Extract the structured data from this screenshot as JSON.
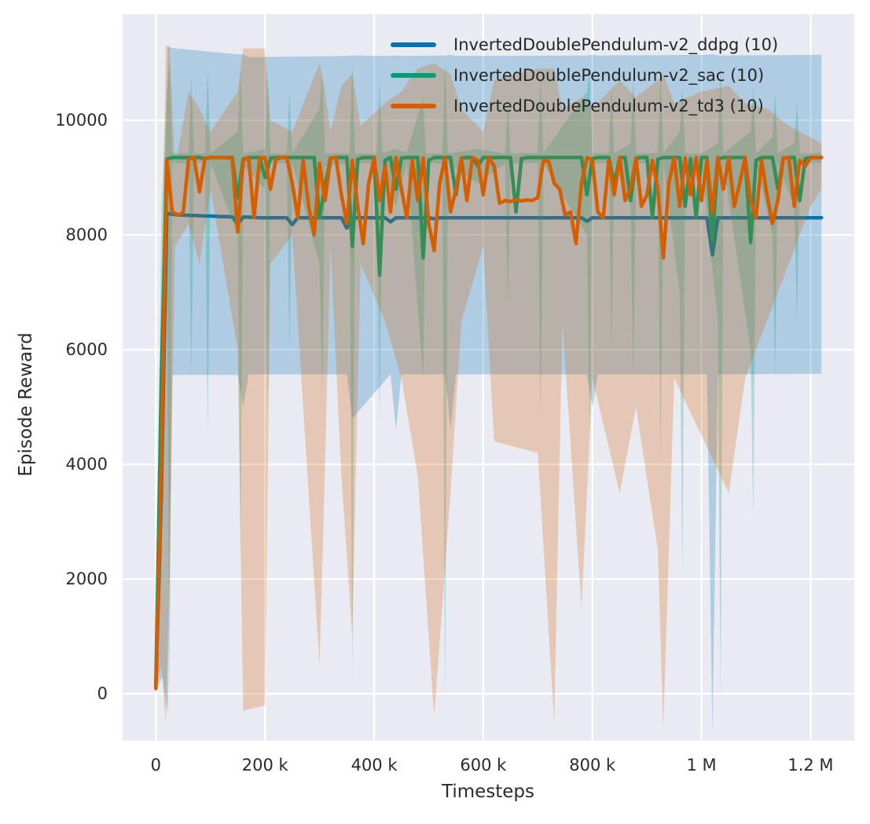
{
  "chart_data": {
    "type": "line",
    "title": "",
    "xlabel": "Timesteps",
    "ylabel": "Episode Reward",
    "grid": true,
    "legend_position": "upper center",
    "plot_background": "#eaeaf2",
    "grid_color": "#ffffff",
    "text_color": "#2b2b2b",
    "xlim": [
      -61000,
      1280000
    ],
    "ylim": [
      -820,
      11850
    ],
    "x_ticks": [
      {
        "value": 0,
        "label": "0"
      },
      {
        "value": 200000,
        "label": "200 k"
      },
      {
        "value": 400000,
        "label": "400 k"
      },
      {
        "value": 600000,
        "label": "600 k"
      },
      {
        "value": 800000,
        "label": "800 k"
      },
      {
        "value": 1000000,
        "label": "1 M"
      },
      {
        "value": 1200000,
        "label": "1.2 M"
      }
    ],
    "y_ticks": [
      {
        "value": 0,
        "label": "0"
      },
      {
        "value": 2000,
        "label": "2000"
      },
      {
        "value": 4000,
        "label": "4000"
      },
      {
        "value": 6000,
        "label": "6000"
      },
      {
        "value": 8000,
        "label": "8000"
      },
      {
        "value": 10000,
        "label": "10000"
      }
    ],
    "x_start": 0,
    "x_step": 10000,
    "series": [
      {
        "key": "ddpg",
        "name": "InvertedDoublePendulum-v2_ddpg (10)",
        "color": "#0173b2",
        "y": [
          130,
          3500,
          8380,
          8360,
          8350,
          8345,
          8340,
          8340,
          8335,
          8330,
          8330,
          8325,
          8320,
          8320,
          8315,
          8200,
          8310,
          8310,
          8305,
          8300,
          8300,
          8300,
          8300,
          8300,
          8300,
          8180,
          8300,
          8300,
          8300,
          8300,
          8300,
          8300,
          8300,
          8300,
          8300,
          8120,
          8300,
          8300,
          8300,
          8300,
          8300,
          8300,
          8300,
          8230,
          8300,
          8300,
          8300,
          8300,
          8300,
          8300,
          8300,
          8280,
          8300,
          8300,
          8300,
          8300,
          8300,
          8300,
          8300,
          8300,
          8300,
          8300,
          8300,
          8300,
          8300,
          8300,
          8300,
          8300,
          8300,
          8300,
          8300,
          8300,
          8300,
          8300,
          8300,
          8300,
          8300,
          8300,
          8300,
          8240,
          8300,
          8300,
          8300,
          8300,
          8300,
          8300,
          8300,
          8300,
          8300,
          8300,
          8300,
          8300,
          8300,
          8300,
          8300,
          8300,
          8300,
          8300,
          8300,
          8300,
          8300,
          8300,
          7650,
          8300,
          8300,
          8300,
          8300,
          8300,
          8300,
          8300,
          8300,
          8300,
          8300,
          8300,
          8300,
          8300,
          8300,
          8300,
          8300,
          8300,
          8300,
          8300,
          8300
        ]
      },
      {
        "key": "sac",
        "name": "InvertedDoublePendulum-v2_sac (10)",
        "color": "#029e73",
        "y": [
          150,
          5500,
          9320,
          9350,
          9350,
          9350,
          9350,
          9350,
          9350,
          9330,
          9350,
          9350,
          9350,
          9350,
          9350,
          8650,
          9320,
          9350,
          9350,
          9350,
          9000,
          9340,
          9350,
          9350,
          9350,
          9350,
          9350,
          9350,
          9350,
          9350,
          8300,
          8850,
          9340,
          9350,
          9350,
          9350,
          7800,
          9320,
          9350,
          9350,
          9350,
          7300,
          9300,
          9350,
          8800,
          9340,
          9350,
          9350,
          9350,
          7600,
          9300,
          9350,
          9350,
          9350,
          9350,
          8700,
          9340,
          9350,
          9350,
          9200,
          9350,
          9350,
          9350,
          9350,
          9350,
          9350,
          8400,
          9330,
          9350,
          9350,
          9350,
          9350,
          9350,
          9350,
          9350,
          9350,
          9350,
          9350,
          9350,
          8700,
          9330,
          9350,
          9350,
          9350,
          8900,
          9350,
          9350,
          8600,
          9340,
          9350,
          9350,
          8300,
          9320,
          9350,
          9350,
          9350,
          9350,
          8500,
          9330,
          8300,
          9350,
          9350,
          7900,
          9320,
          9350,
          9350,
          9350,
          9350,
          9350,
          7870,
          9300,
          9350,
          9350,
          9350,
          8800,
          9340,
          9350,
          9350,
          8600,
          9330,
          9350,
          9350,
          9350
        ]
      },
      {
        "key": "td3",
        "name": "InvertedDoublePendulum-v2_td3 (10)",
        "color": "#d55e00",
        "y": [
          90,
          4000,
          9300,
          8400,
          8350,
          8380,
          9320,
          9350,
          8750,
          9340,
          9350,
          9350,
          9350,
          9350,
          9330,
          8050,
          9300,
          9350,
          8300,
          9340,
          9350,
          8800,
          9320,
          9350,
          9350,
          8900,
          8300,
          9300,
          8500,
          8000,
          9250,
          8600,
          9330,
          9350,
          8700,
          8200,
          9300,
          8500,
          7850,
          8900,
          9340,
          8600,
          9200,
          8400,
          9350,
          8800,
          8300,
          9300,
          8600,
          9340,
          8200,
          7730,
          8900,
          9350,
          8400,
          8800,
          9340,
          8600,
          9350,
          9300,
          8700,
          9350,
          9200,
          8550,
          8600,
          8580,
          8620,
          8590,
          8610,
          8600,
          8650,
          9300,
          9280,
          8900,
          8800,
          8350,
          8400,
          7850,
          8900,
          9350,
          9300,
          8400,
          8300,
          9300,
          8700,
          9350,
          8600,
          8800,
          9340,
          8500,
          8700,
          9300,
          8800,
          7600,
          8900,
          9350,
          8500,
          9340,
          8700,
          9350,
          8600,
          9300,
          8400,
          9350,
          8800,
          9340,
          8500,
          8900,
          9350,
          8600,
          8300,
          9300,
          8700,
          8200,
          8600,
          9340,
          9350,
          8500,
          9300,
          9200,
          9350,
          9350,
          9350
        ]
      }
    ],
    "bands": [
      {
        "key": "ddpg",
        "color": "#0173b2",
        "opacity": 0.25,
        "x": [
          0,
          12000,
          22000,
          30000,
          150000,
          160000,
          170000,
          350000,
          360000,
          430000,
          440000,
          450000,
          530000,
          540000,
          550000,
          790000,
          800000,
          810000,
          1010000,
          1020000,
          1030000,
          1220000
        ],
        "low": [
          60,
          300,
          -350,
          5560,
          5560,
          5000,
          5570,
          5570,
          4800,
          5570,
          4600,
          5570,
          5570,
          4600,
          5570,
          5570,
          5000,
          5570,
          5570,
          -700,
          5570,
          5580
        ],
        "high": [
          220,
          7000,
          11280,
          11260,
          11150,
          11150,
          11100,
          11120,
          11130,
          11120,
          11130,
          11120,
          11130,
          11140,
          11120,
          11130,
          11140,
          11130,
          11140,
          11150,
          11130,
          11140
        ]
      },
      {
        "key": "sac",
        "color": "#029e73",
        "opacity": 0.25,
        "x": [
          0,
          10000,
          20000,
          25000,
          30000,
          60000,
          65000,
          70000,
          90000,
          95000,
          100000,
          150000,
          155000,
          160000,
          200000,
          205000,
          210000,
          240000,
          245000,
          250000,
          300000,
          305000,
          310000,
          355000,
          360000,
          365000,
          405000,
          410000,
          415000,
          440000,
          460000,
          490000,
          495000,
          525000,
          530000,
          535000,
          590000,
          640000,
          645000,
          650000,
          700000,
          705000,
          710000,
          790000,
          795000,
          800000,
          830000,
          835000,
          840000,
          870000,
          875000,
          880000,
          920000,
          925000,
          930000,
          960000,
          965000,
          970000,
          1000000,
          1030000,
          1035000,
          1040000,
          1090000,
          1095000,
          1100000,
          1130000,
          1135000,
          1140000,
          1170000,
          1175000,
          1180000,
          1220000
        ],
        "low": [
          100,
          2000,
          8000,
          -200,
          9250,
          9250,
          5500,
          9260,
          9260,
          4500,
          9260,
          8000,
          2500,
          9200,
          8800,
          5000,
          9250,
          9250,
          6000,
          9250,
          7500,
          5200,
          9200,
          9250,
          200,
          9250,
          9250,
          4700,
          9250,
          8500,
          9250,
          5500,
          9250,
          9250,
          -300,
          9250,
          8900,
          9250,
          6800,
          9250,
          9250,
          4800,
          9250,
          8000,
          4500,
          9250,
          9250,
          6000,
          9250,
          8500,
          5500,
          9250,
          9250,
          4000,
          9250,
          7000,
          2000,
          9250,
          9250,
          6500,
          -200,
          9250,
          6000,
          3000,
          9250,
          8000,
          5500,
          9250,
          8500,
          6500,
          9250,
          9260
        ],
        "high": [
          200,
          8500,
          10500,
          11000,
          9420,
          9430,
          10800,
          9420,
          9420,
          10900,
          9420,
          9800,
          10900,
          9420,
          9500,
          10800,
          9420,
          9420,
          10500,
          9420,
          10200,
          10800,
          9420,
          9420,
          11000,
          9420,
          9420,
          10700,
          9420,
          9500,
          9430,
          10400,
          9420,
          9420,
          11000,
          9420,
          9500,
          9420,
          10300,
          9420,
          9430,
          10800,
          9420,
          10500,
          10900,
          9420,
          9430,
          10600,
          9420,
          9600,
          10700,
          9420,
          9430,
          10800,
          9420,
          9800,
          10600,
          9420,
          9420,
          9600,
          10900,
          9420,
          9800,
          10600,
          9420,
          9700,
          10500,
          9420,
          9600,
          10300,
          9420,
          9430
        ]
      },
      {
        "key": "td3",
        "color": "#d55e00",
        "opacity": 0.25,
        "x": [
          0,
          10000,
          18000,
          25000,
          35000,
          60000,
          80000,
          100000,
          150000,
          160000,
          200000,
          210000,
          250000,
          300000,
          310000,
          320000,
          340000,
          360000,
          375000,
          420000,
          450000,
          480000,
          510000,
          540000,
          560000,
          600000,
          620000,
          660000,
          700000,
          730000,
          745000,
          780000,
          800000,
          850000,
          880000,
          920000,
          930000,
          950000,
          1000000,
          1050000,
          1080000,
          1120000,
          1160000,
          1200000,
          1220000
        ],
        "low": [
          50,
          500,
          -500,
          2000,
          7800,
          8200,
          7500,
          8800,
          6000,
          -300,
          -200,
          7500,
          8000,
          500,
          4000,
          7800,
          3800,
          1000,
          7500,
          6500,
          5500,
          3800,
          -400,
          3500,
          6500,
          7800,
          4400,
          4300,
          4200,
          -500,
          6500,
          1500,
          5500,
          3500,
          5000,
          2500,
          -600,
          5500,
          4500,
          3500,
          5500,
          6500,
          7500,
          8500,
          8800
        ],
        "high": [
          180,
          6000,
          11300,
          11300,
          9200,
          10500,
          10200,
          9800,
          10500,
          11250,
          11250,
          10000,
          9800,
          11000,
          10500,
          9800,
          10600,
          10800,
          9900,
          10300,
          10500,
          10900,
          11000,
          10800,
          10200,
          9800,
          10700,
          10800,
          10900,
          10900,
          10200,
          10400,
          10200,
          10700,
          10400,
          10700,
          10800,
          10300,
          10500,
          10600,
          10300,
          10200,
          9900,
          9700,
          9600
        ]
      }
    ]
  }
}
